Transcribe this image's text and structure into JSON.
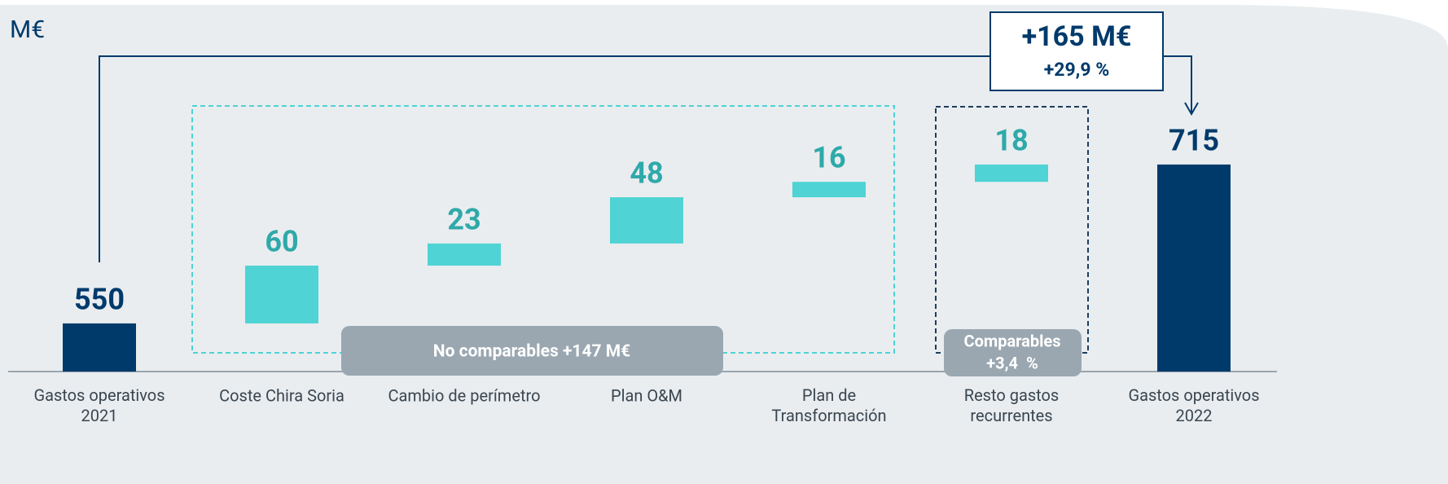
{
  "chart_data": {
    "type": "waterfall",
    "unit_label": "M€",
    "categories": [
      "Gastos operativos\n2021",
      "Coste Chira Soria",
      "Cambio de perímetro",
      "Plan O&M",
      "Plan de\nTransformación",
      "Resto gastos\nrecurrentes",
      "Gastos operativos\n2022"
    ],
    "values": [
      550,
      60,
      23,
      48,
      16,
      18,
      715
    ],
    "measure": [
      "total",
      "relative",
      "relative",
      "relative",
      "relative",
      "relative",
      "total"
    ],
    "total_color": "#003a6b",
    "step_color": "#4fd3d4",
    "step_label_color": "#2fa9a9",
    "ylim": [
      500,
      720
    ],
    "yticks": [],
    "annotations": {
      "total_change": "+165 M€",
      "total_change_pct": "+29,9 %",
      "non_comparable": "No comparables +147 M€",
      "comparable": "Comparables",
      "comparable_pct": "+3,4  %"
    }
  }
}
